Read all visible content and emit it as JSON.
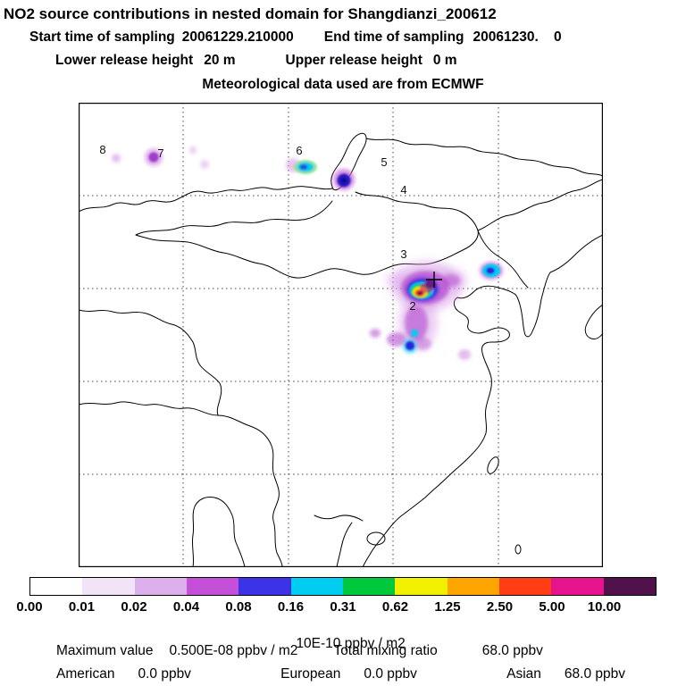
{
  "header": {
    "title": "NO2 source contributions in nested domain for Shangdianzi_200612",
    "sampling": {
      "start_label": "Start time of sampling",
      "start_value": "20061229.210000",
      "end_label": "End time of sampling",
      "end_value": "20061230.    0"
    },
    "release": {
      "lower_label": "Lower release height",
      "lower_value": "20 m",
      "upper_label": "Upper release height",
      "upper_value": "0 m"
    },
    "met_line": "Meteorological data used are from ECMWF"
  },
  "map": {
    "site_labels": [
      {
        "text": "8"
      },
      {
        "text": "7"
      },
      {
        "text": "6"
      },
      {
        "text": "5"
      },
      {
        "text": "4"
      },
      {
        "text": "3"
      },
      {
        "text": "2"
      }
    ],
    "marker": "+"
  },
  "colorbar": {
    "tick_labels": [
      "0.00",
      "0.01",
      "0.02",
      "0.04",
      "0.08",
      "0.16",
      "0.31",
      "0.62",
      "1.25",
      "2.50",
      "5.00",
      "10.00"
    ],
    "colors": [
      "#ffffff",
      "#f3e3f7",
      "#ddafec",
      "#c44fd9",
      "#3c32e6",
      "#00cdf0",
      "#00c83c",
      "#f0f000",
      "#ffa500",
      "#ff3c14",
      "#e6148c",
      "#50104b"
    ],
    "unit": "10E-10 ppbv / m2"
  },
  "footer": {
    "max_label": "Maximum value",
    "max_value": "0.500E-08 ppbv / m2",
    "tmr_label": "Total mixing ratio",
    "tmr_value": "68.0 ppbv",
    "regions": [
      {
        "label": "American",
        "value": "0.0 ppbv"
      },
      {
        "label": "European",
        "value": "0.0 ppbv"
      },
      {
        "label": "Asian",
        "value": "68.0 ppbv"
      }
    ]
  },
  "chart_data": {
    "type": "heatmap",
    "title": "NO2 source contributions in nested domain for Shangdianzi_200612",
    "subtitle_lines": [
      "Start time of sampling 20061229.210000   End time of sampling 20061230.    0",
      "Lower release height 20 m   Upper release height 0 m",
      "Meteorological data used are from ECMWF"
    ],
    "colorbar_levels": [
      0.0,
      0.01,
      0.02,
      0.04,
      0.08,
      0.16,
      0.31,
      0.62,
      1.25,
      2.5,
      5.0,
      10.0
    ],
    "colorbar_colors": [
      "#ffffff",
      "#f3e3f7",
      "#ddafec",
      "#c44fd9",
      "#3c32e6",
      "#00cdf0",
      "#00c83c",
      "#f0f000",
      "#ffa500",
      "#ff3c14",
      "#e6148c",
      "#50104b"
    ],
    "unit": "10E-10 ppbv / m2",
    "maximum_value": "0.500E-08 ppbv / m2",
    "total_mixing_ratio_ppbv": 68.0,
    "contributions_ppbv": {
      "American": 0.0,
      "European": 0.0,
      "Asian": 68.0
    },
    "release_points_visible": [
      "2",
      "3",
      "4",
      "5",
      "6",
      "7",
      "8"
    ],
    "legend_position": "bottom",
    "grid": "dashed"
  }
}
